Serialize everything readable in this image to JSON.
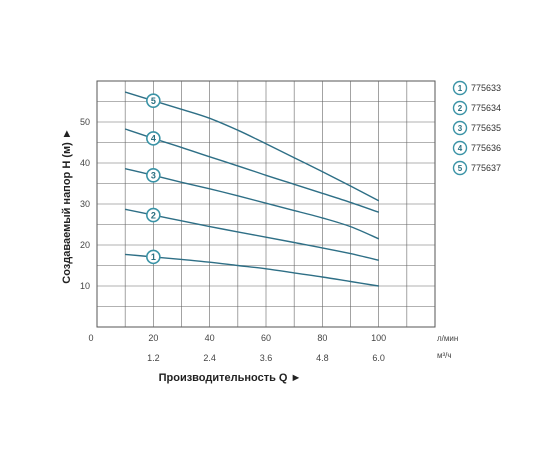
{
  "chart_data": {
    "type": "line",
    "xlabel": "Производительность Q ►",
    "ylabel": "Создаваемый напор H (м) ►",
    "x_unit_primary": "л/мин",
    "x_unit_secondary": "м³/ч",
    "x_ticks_primary": [
      "0",
      "20",
      "40",
      "60",
      "80",
      "100"
    ],
    "x_ticks_secondary": [
      "1.2",
      "2.4",
      "3.6",
      "4.8",
      "6.0"
    ],
    "y_ticks": [
      "10",
      "20",
      "30",
      "40",
      "50"
    ],
    "xlim": [
      0,
      120
    ],
    "ylim": [
      0,
      60
    ],
    "grid": true,
    "legend_position": "right",
    "line_color": "#2e6f86",
    "marker_color": "#3a93a6",
    "series": [
      {
        "name": "775633",
        "number": "1",
        "x": [
          10,
          20,
          30,
          40,
          50,
          60,
          70,
          80,
          90,
          100
        ],
        "y": [
          17.7,
          17.1,
          16.5,
          15.8,
          15.0,
          14.2,
          13.2,
          12.2,
          11.1,
          10.0
        ]
      },
      {
        "name": "775634",
        "number": "2",
        "x": [
          10,
          20,
          30,
          40,
          50,
          60,
          70,
          80,
          90,
          100
        ],
        "y": [
          28.7,
          27.3,
          25.9,
          24.5,
          23.2,
          21.9,
          20.6,
          19.3,
          17.9,
          16.3
        ]
      },
      {
        "name": "775635",
        "number": "3",
        "x": [
          10,
          20,
          30,
          40,
          50,
          60,
          70,
          80,
          90,
          100
        ],
        "y": [
          38.6,
          37.0,
          35.3,
          33.7,
          32.0,
          30.2,
          28.4,
          26.6,
          24.5,
          21.5
        ]
      },
      {
        "name": "775636",
        "number": "4",
        "x": [
          10,
          20,
          30,
          40,
          50,
          60,
          70,
          80,
          90,
          100
        ],
        "y": [
          48.3,
          46.0,
          43.8,
          41.5,
          39.3,
          37.0,
          34.8,
          32.6,
          30.4,
          28.0
        ]
      },
      {
        "name": "775637",
        "number": "5",
        "x": [
          10,
          20,
          30,
          40,
          50,
          60,
          70,
          80,
          90,
          100
        ],
        "y": [
          57.3,
          55.2,
          53.1,
          50.9,
          48.0,
          44.7,
          41.3,
          37.9,
          34.4,
          30.8
        ]
      }
    ],
    "marker_x": 20
  }
}
